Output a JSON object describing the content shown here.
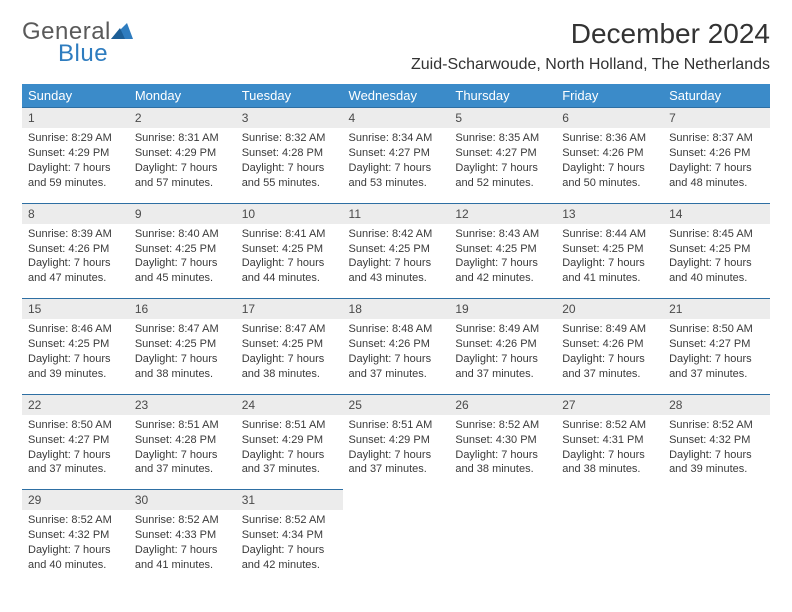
{
  "brand": {
    "general": "General",
    "blue": "Blue"
  },
  "title": "December 2024",
  "location": "Zuid-Scharwoude, North Holland, The Netherlands",
  "columns": [
    "Sunday",
    "Monday",
    "Tuesday",
    "Wednesday",
    "Thursday",
    "Friday",
    "Saturday"
  ],
  "theme": {
    "header_bg": "#3b8bc9",
    "header_fg": "#ffffff",
    "daynum_bg": "#ececec",
    "rule_color": "#2e6fa3",
    "text_color": "#3a3a3a",
    "title_fontsize": 28,
    "location_fontsize": 16,
    "body_fontsize": 11
  },
  "days": [
    {
      "n": "1",
      "sr": "8:29 AM",
      "ss": "4:29 PM",
      "dl": "7 hours and 59 minutes."
    },
    {
      "n": "2",
      "sr": "8:31 AM",
      "ss": "4:29 PM",
      "dl": "7 hours and 57 minutes."
    },
    {
      "n": "3",
      "sr": "8:32 AM",
      "ss": "4:28 PM",
      "dl": "7 hours and 55 minutes."
    },
    {
      "n": "4",
      "sr": "8:34 AM",
      "ss": "4:27 PM",
      "dl": "7 hours and 53 minutes."
    },
    {
      "n": "5",
      "sr": "8:35 AM",
      "ss": "4:27 PM",
      "dl": "7 hours and 52 minutes."
    },
    {
      "n": "6",
      "sr": "8:36 AM",
      "ss": "4:26 PM",
      "dl": "7 hours and 50 minutes."
    },
    {
      "n": "7",
      "sr": "8:37 AM",
      "ss": "4:26 PM",
      "dl": "7 hours and 48 minutes."
    },
    {
      "n": "8",
      "sr": "8:39 AM",
      "ss": "4:26 PM",
      "dl": "7 hours and 47 minutes."
    },
    {
      "n": "9",
      "sr": "8:40 AM",
      "ss": "4:25 PM",
      "dl": "7 hours and 45 minutes."
    },
    {
      "n": "10",
      "sr": "8:41 AM",
      "ss": "4:25 PM",
      "dl": "7 hours and 44 minutes."
    },
    {
      "n": "11",
      "sr": "8:42 AM",
      "ss": "4:25 PM",
      "dl": "7 hours and 43 minutes."
    },
    {
      "n": "12",
      "sr": "8:43 AM",
      "ss": "4:25 PM",
      "dl": "7 hours and 42 minutes."
    },
    {
      "n": "13",
      "sr": "8:44 AM",
      "ss": "4:25 PM",
      "dl": "7 hours and 41 minutes."
    },
    {
      "n": "14",
      "sr": "8:45 AM",
      "ss": "4:25 PM",
      "dl": "7 hours and 40 minutes."
    },
    {
      "n": "15",
      "sr": "8:46 AM",
      "ss": "4:25 PM",
      "dl": "7 hours and 39 minutes."
    },
    {
      "n": "16",
      "sr": "8:47 AM",
      "ss": "4:25 PM",
      "dl": "7 hours and 38 minutes."
    },
    {
      "n": "17",
      "sr": "8:47 AM",
      "ss": "4:25 PM",
      "dl": "7 hours and 38 minutes."
    },
    {
      "n": "18",
      "sr": "8:48 AM",
      "ss": "4:26 PM",
      "dl": "7 hours and 37 minutes."
    },
    {
      "n": "19",
      "sr": "8:49 AM",
      "ss": "4:26 PM",
      "dl": "7 hours and 37 minutes."
    },
    {
      "n": "20",
      "sr": "8:49 AM",
      "ss": "4:26 PM",
      "dl": "7 hours and 37 minutes."
    },
    {
      "n": "21",
      "sr": "8:50 AM",
      "ss": "4:27 PM",
      "dl": "7 hours and 37 minutes."
    },
    {
      "n": "22",
      "sr": "8:50 AM",
      "ss": "4:27 PM",
      "dl": "7 hours and 37 minutes."
    },
    {
      "n": "23",
      "sr": "8:51 AM",
      "ss": "4:28 PM",
      "dl": "7 hours and 37 minutes."
    },
    {
      "n": "24",
      "sr": "8:51 AM",
      "ss": "4:29 PM",
      "dl": "7 hours and 37 minutes."
    },
    {
      "n": "25",
      "sr": "8:51 AM",
      "ss": "4:29 PM",
      "dl": "7 hours and 37 minutes."
    },
    {
      "n": "26",
      "sr": "8:52 AM",
      "ss": "4:30 PM",
      "dl": "7 hours and 38 minutes."
    },
    {
      "n": "27",
      "sr": "8:52 AM",
      "ss": "4:31 PM",
      "dl": "7 hours and 38 minutes."
    },
    {
      "n": "28",
      "sr": "8:52 AM",
      "ss": "4:32 PM",
      "dl": "7 hours and 39 minutes."
    },
    {
      "n": "29",
      "sr": "8:52 AM",
      "ss": "4:32 PM",
      "dl": "7 hours and 40 minutes."
    },
    {
      "n": "30",
      "sr": "8:52 AM",
      "ss": "4:33 PM",
      "dl": "7 hours and 41 minutes."
    },
    {
      "n": "31",
      "sr": "8:52 AM",
      "ss": "4:34 PM",
      "dl": "7 hours and 42 minutes."
    }
  ],
  "labels": {
    "sunrise": "Sunrise: ",
    "sunset": "Sunset: ",
    "daylight": "Daylight: "
  }
}
